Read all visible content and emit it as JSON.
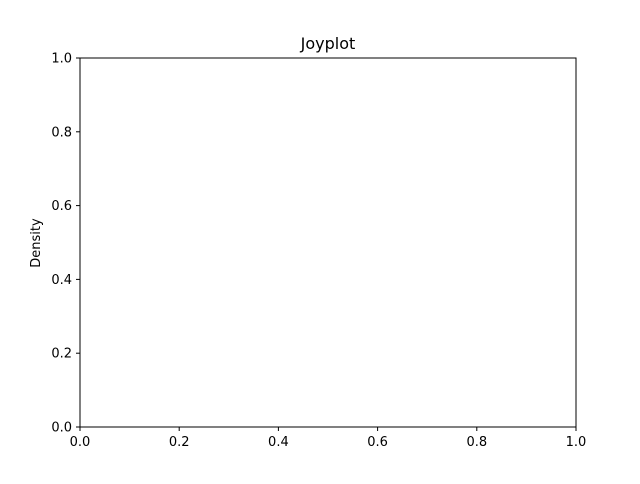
{
  "chart_data": {
    "type": "area",
    "title": "Joyplot",
    "xlabel": "",
    "ylabel": "Density",
    "xlim": [
      0.0,
      1.0
    ],
    "ylim": [
      0.0,
      1.0
    ],
    "x_ticks": [
      0.0,
      0.2,
      0.4,
      0.6,
      0.8,
      1.0
    ],
    "y_ticks": [
      0.0,
      0.2,
      0.4,
      0.6,
      0.8,
      1.0
    ],
    "x_tick_labels": [
      "0.0",
      "0.2",
      "0.4",
      "0.6",
      "0.8",
      "1.0"
    ],
    "y_tick_labels": [
      "0.0",
      "0.2",
      "0.4",
      "0.6",
      "0.8",
      "1.0"
    ],
    "grid": false,
    "series": []
  }
}
